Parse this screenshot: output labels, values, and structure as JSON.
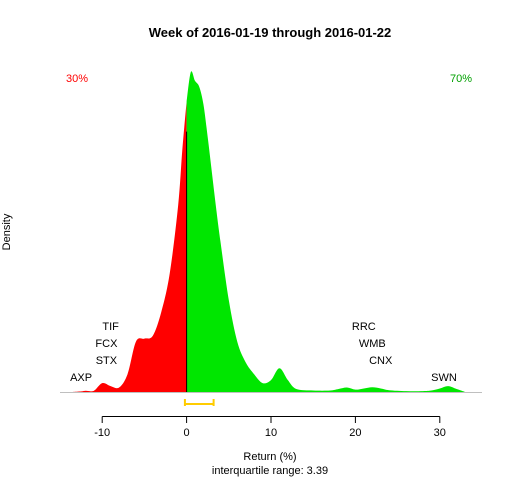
{
  "chart_data": {
    "type": "area",
    "title": "Week of 2016-01-19 through 2016-01-22",
    "xlabel": "Return (%)",
    "ylabel": "Density",
    "subtitle": "interquartile range: 3.39",
    "xlim": [
      -15,
      35
    ],
    "xticks": [
      "-10",
      "0",
      "10",
      "20",
      "30"
    ],
    "grid": false,
    "neg_pct_label": "30%",
    "pos_pct_label": "70%",
    "colors": {
      "negative": "#ff0000",
      "positive": "#00e600",
      "iqr": "#ffcc00",
      "baseline": "#bfbfbf"
    },
    "iqr": [
      -0.2,
      3.2
    ],
    "density": [
      [
        -13.5,
        0
      ],
      [
        -12.5,
        0.002
      ],
      [
        -12,
        0.004
      ],
      [
        -11,
        0.004
      ],
      [
        -10,
        0.03
      ],
      [
        -9,
        0.02
      ],
      [
        -8,
        0.015
      ],
      [
        -7,
        0.06
      ],
      [
        -6,
        0.17
      ],
      [
        -5,
        0.18
      ],
      [
        -4,
        0.19
      ],
      [
        -3,
        0.27
      ],
      [
        -2,
        0.4
      ],
      [
        -1,
        0.63
      ],
      [
        -0.5,
        0.82
      ],
      [
        0,
        0.98
      ],
      [
        0.5,
        1.08
      ],
      [
        1,
        1.05
      ],
      [
        1.5,
        1.03
      ],
      [
        2,
        0.97
      ],
      [
        2.5,
        0.86
      ],
      [
        3,
        0.74
      ],
      [
        3.5,
        0.62
      ],
      [
        4,
        0.51
      ],
      [
        5,
        0.31
      ],
      [
        6,
        0.17
      ],
      [
        7,
        0.1
      ],
      [
        8,
        0.06
      ],
      [
        9,
        0.03
      ],
      [
        10,
        0.04
      ],
      [
        11,
        0.08
      ],
      [
        12,
        0.04
      ],
      [
        13,
        0.01
      ],
      [
        15,
        0.005
      ],
      [
        17,
        0.005
      ],
      [
        18,
        0.01
      ],
      [
        19,
        0.015
      ],
      [
        20,
        0.008
      ],
      [
        21,
        0.012
      ],
      [
        22,
        0.016
      ],
      [
        23,
        0.012
      ],
      [
        24,
        0.006
      ],
      [
        26,
        0.003
      ],
      [
        28,
        0.003
      ],
      [
        29,
        0.005
      ],
      [
        30,
        0.012
      ],
      [
        31,
        0.02
      ],
      [
        32,
        0.01
      ],
      [
        33,
        0
      ]
    ],
    "annotations": [
      {
        "label": "AXP",
        "x": -12.5
      },
      {
        "label": "STX",
        "x": -9.5
      },
      {
        "label": "FCX",
        "x": -9.5
      },
      {
        "label": "TIF",
        "x": -9.0
      },
      {
        "label": "RRC",
        "x": 21.0
      },
      {
        "label": "WMB",
        "x": 22.0
      },
      {
        "label": "CNX",
        "x": 23.0
      },
      {
        "label": "SWN",
        "x": 30.5
      }
    ]
  }
}
